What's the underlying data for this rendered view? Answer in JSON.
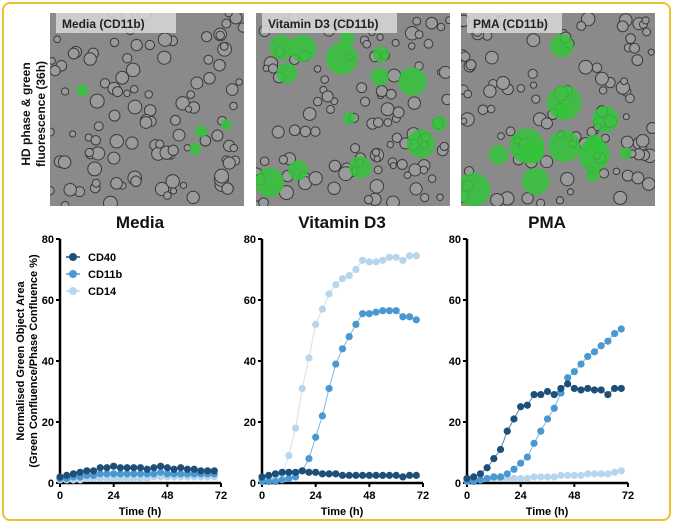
{
  "side_label": "HD phase & green fluorescence (36h)",
  "images": [
    {
      "label": "Media (CD11b)",
      "green_level": "low"
    },
    {
      "label": "Vitamin D3 (CD11b)",
      "green_level": "high"
    },
    {
      "label": "PMA (CD11b)",
      "green_level": "high"
    }
  ],
  "colors": {
    "CD40": "#1d4f78",
    "CD11b": "#4a98cf",
    "CD14": "#b7d6ec",
    "border": "#f0c030"
  },
  "chart_data": [
    {
      "type": "line",
      "title": "Media",
      "xlabel": "Time (h)",
      "ylabel": "Normalised Green Object Area (Green Confluence/Phase Confluence %)",
      "xlim": [
        0,
        72
      ],
      "ylim": [
        0,
        80
      ],
      "xticks": [
        "0",
        "24",
        "48",
        "72"
      ],
      "yticks": [
        "0",
        "20",
        "40",
        "60",
        "80"
      ],
      "legend": "top-left",
      "x": [
        0,
        3,
        6,
        9,
        12,
        15,
        18,
        21,
        24,
        27,
        30,
        33,
        36,
        39,
        42,
        45,
        48,
        51,
        54,
        57,
        60,
        63,
        66,
        69
      ],
      "series": [
        {
          "name": "CD40",
          "values": [
            2,
            2.5,
            3,
            3.5,
            4,
            4,
            5,
            5,
            5.5,
            5,
            5,
            5,
            5,
            4.5,
            5,
            5.5,
            5,
            4.5,
            5,
            4.5,
            4.5,
            4,
            4,
            4
          ]
        },
        {
          "name": "CD11b",
          "values": [
            1.5,
            1.5,
            2,
            2,
            2.5,
            2.5,
            3,
            3,
            3,
            3,
            3,
            3,
            3,
            3,
            3,
            3.5,
            3,
            3,
            3,
            3,
            3,
            3,
            3,
            3
          ]
        },
        {
          "name": "CD14",
          "values": [
            1,
            1,
            1,
            1,
            1.5,
            1.5,
            1.5,
            1.5,
            1.5,
            1.5,
            1.5,
            1.5,
            1.5,
            1.5,
            2,
            2,
            2,
            2,
            2,
            2,
            2,
            2,
            2,
            2
          ]
        }
      ]
    },
    {
      "type": "line",
      "title": "Vitamin D3",
      "xlabel": "Time (h)",
      "xlim": [
        0,
        72
      ],
      "ylim": [
        0,
        80
      ],
      "xticks": [
        "0",
        "24",
        "48",
        "72"
      ],
      "yticks": [
        "0",
        "20",
        "40",
        "60",
        "80"
      ],
      "x": [
        0,
        3,
        6,
        9,
        12,
        15,
        18,
        21,
        24,
        27,
        30,
        33,
        36,
        39,
        42,
        45,
        48,
        51,
        54,
        57,
        60,
        63,
        66,
        69
      ],
      "series": [
        {
          "name": "CD40",
          "values": [
            2,
            2.5,
            3,
            3.5,
            3.5,
            3.5,
            4,
            3.5,
            3.5,
            3,
            3,
            3,
            2.5,
            2.5,
            2.5,
            2.5,
            2.5,
            2.5,
            2.5,
            2.5,
            2.5,
            2,
            2.5,
            2.5
          ]
        },
        {
          "name": "CD11b",
          "values": [
            0.5,
            0.5,
            0.5,
            1,
            1.5,
            2,
            4,
            8,
            15,
            22,
            31,
            39,
            44,
            48,
            52,
            55.5,
            55.5,
            56,
            56.5,
            56.5,
            56.5,
            54.5,
            54.5,
            53.5
          ]
        },
        {
          "name": "CD14",
          "values": [
            1,
            1,
            1.5,
            3,
            9,
            18,
            31,
            41,
            52,
            57,
            62,
            65,
            67,
            68,
            70,
            73,
            72.5,
            72.5,
            73,
            74,
            74,
            73,
            74.5,
            74.5
          ]
        }
      ]
    },
    {
      "type": "line",
      "title": "PMA",
      "xlabel": "Time (h)",
      "xlim": [
        0,
        72
      ],
      "ylim": [
        0,
        80
      ],
      "xticks": [
        "0",
        "24",
        "48",
        "72"
      ],
      "yticks": [
        "0",
        "20",
        "40",
        "60",
        "80"
      ],
      "x": [
        0,
        3,
        6,
        9,
        12,
        15,
        18,
        21,
        24,
        27,
        30,
        33,
        36,
        39,
        42,
        45,
        48,
        51,
        54,
        57,
        60,
        63,
        66,
        69
      ],
      "series": [
        {
          "name": "CD40",
          "values": [
            1.5,
            2,
            3,
            5,
            8,
            11,
            17,
            21,
            25,
            25.5,
            29,
            29,
            30,
            29,
            31,
            32.5,
            31,
            30.5,
            31,
            30.5,
            30.5,
            29,
            31,
            31
          ]
        },
        {
          "name": "CD11b",
          "values": [
            0.5,
            0.5,
            1,
            1.5,
            2,
            2,
            3,
            4.5,
            6.5,
            8.5,
            13,
            17,
            21,
            24.5,
            29.5,
            34.5,
            36.5,
            39,
            41.5,
            43,
            45,
            46.5,
            49,
            50.5
          ]
        },
        {
          "name": "CD14",
          "values": [
            1,
            1,
            1,
            1.5,
            1.5,
            1.5,
            1.5,
            1.5,
            1.5,
            1.5,
            2,
            2,
            2,
            2,
            2.5,
            2.5,
            2.5,
            2.5,
            3,
            3,
            3,
            3,
            3.5,
            4
          ]
        }
      ]
    }
  ]
}
